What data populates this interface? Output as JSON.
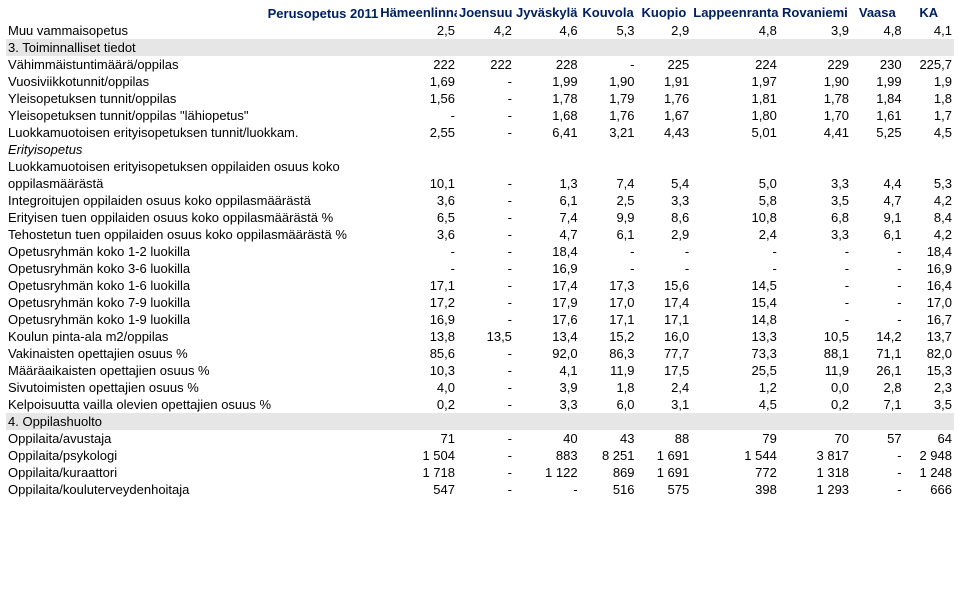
{
  "title": "Perusopetus 2011",
  "title_fontsize": 13,
  "title_fontweight": "bold",
  "title_color": "#002060",
  "header_color": "#002060",
  "header_fontweight": "bold",
  "header_fontsize": 13,
  "body_fontsize": 13,
  "body_color": "#000000",
  "section_bg": "#e6e6e6",
  "columns": [
    "Hämeenlinna",
    "Joensuu",
    "Jyväskylä",
    "Kouvola",
    "Kuopio",
    "Lappeenranta",
    "Rovaniemi",
    "Vaasa",
    "KA"
  ],
  "rows": [
    {
      "type": "data",
      "label": "Muu vammaisopetus",
      "values": [
        "2,5",
        "4,2",
        "4,6",
        "5,3",
        "2,9",
        "4,8",
        "3,9",
        "4,8",
        "4,1"
      ]
    },
    {
      "type": "section",
      "label": "3. Toiminnalliset tiedot"
    },
    {
      "type": "data",
      "label": "Vähimmäistuntimäärä/oppilas",
      "values": [
        "222",
        "222",
        "228",
        "-",
        "225",
        "224",
        "229",
        "230",
        "225,7"
      ]
    },
    {
      "type": "data",
      "label": "Vuosiviikkotunnit/oppilas",
      "values": [
        "1,69",
        "-",
        "1,99",
        "1,90",
        "1,91",
        "1,97",
        "1,90",
        "1,99",
        "1,9"
      ]
    },
    {
      "type": "data",
      "label": "Yleisopetuksen tunnit/oppilas",
      "values": [
        "1,56",
        "-",
        "1,78",
        "1,79",
        "1,76",
        "1,81",
        "1,78",
        "1,84",
        "1,8"
      ]
    },
    {
      "type": "data",
      "label": "Yleisopetuksen tunnit/oppilas \"lähiopetus\"",
      "values": [
        "-",
        "-",
        "1,68",
        "1,76",
        "1,67",
        "1,80",
        "1,70",
        "1,61",
        "1,7"
      ]
    },
    {
      "type": "data",
      "label": "Luokkamuotoisen erityisopetuksen tunnit/luokkam.",
      "values": [
        "2,55",
        "-",
        "6,41",
        "3,21",
        "4,43",
        "5,01",
        "4,41",
        "5,25",
        "4,5"
      ]
    },
    {
      "type": "italic",
      "label": "Erityisopetus"
    },
    {
      "type": "data",
      "label": "Luokkamuotoisen erityisopetuksen oppilaiden osuus koko",
      "values": [
        "",
        "",
        "",
        "",
        "",
        "",
        "",
        "",
        ""
      ]
    },
    {
      "type": "data",
      "label": "oppilasmäärästä",
      "values": [
        "10,1",
        "-",
        "1,3",
        "7,4",
        "5,4",
        "5,0",
        "3,3",
        "4,4",
        "5,3"
      ]
    },
    {
      "type": "data",
      "label": "Integroitujen oppilaiden osuus koko oppilasmäärästä",
      "values": [
        "3,6",
        "-",
        "6,1",
        "2,5",
        "3,3",
        "5,8",
        "3,5",
        "4,7",
        "4,2"
      ]
    },
    {
      "type": "data",
      "label": "Erityisen tuen oppilaiden osuus koko oppilasmäärästä %",
      "values": [
        "6,5",
        "-",
        "7,4",
        "9,9",
        "8,6",
        "10,8",
        "6,8",
        "9,1",
        "8,4"
      ]
    },
    {
      "type": "data",
      "label": "Tehostetun tuen oppilaiden osuus koko oppilasmäärästä %",
      "values": [
        "3,6",
        "-",
        "4,7",
        "6,1",
        "2,9",
        "2,4",
        "3,3",
        "6,1",
        "4,2"
      ]
    },
    {
      "type": "data",
      "label": "Opetusryhmän koko 1-2 luokilla",
      "values": [
        "-",
        "-",
        "18,4",
        "-",
        "-",
        "-",
        "-",
        "-",
        "18,4"
      ]
    },
    {
      "type": "data",
      "label": "Opetusryhmän koko 3-6 luokilla",
      "values": [
        "-",
        "-",
        "16,9",
        "-",
        "-",
        "-",
        "-",
        "-",
        "16,9"
      ]
    },
    {
      "type": "data",
      "label": "Opetusryhmän koko 1-6 luokilla",
      "values": [
        "17,1",
        "-",
        "17,4",
        "17,3",
        "15,6",
        "14,5",
        "-",
        "-",
        "16,4"
      ]
    },
    {
      "type": "data",
      "label": "Opetusryhmän koko 7-9 luokilla",
      "values": [
        "17,2",
        "-",
        "17,9",
        "17,0",
        "17,4",
        "15,4",
        "-",
        "-",
        "17,0"
      ]
    },
    {
      "type": "data",
      "label": "Opetusryhmän koko 1-9 luokilla",
      "values": [
        "16,9",
        "-",
        "17,6",
        "17,1",
        "17,1",
        "14,8",
        "-",
        "-",
        "16,7"
      ]
    },
    {
      "type": "data",
      "label": "Koulun pinta-ala m2/oppilas",
      "values": [
        "13,8",
        "13,5",
        "13,4",
        "15,2",
        "16,0",
        "13,3",
        "10,5",
        "14,2",
        "13,7"
      ]
    },
    {
      "type": "data",
      "label": "Vakinaisten opettajien osuus %",
      "values": [
        "85,6",
        "-",
        "92,0",
        "86,3",
        "77,7",
        "73,3",
        "88,1",
        "71,1",
        "82,0"
      ]
    },
    {
      "type": "data",
      "label": "Määräaikaisten opettajien osuus %",
      "values": [
        "10,3",
        "-",
        "4,1",
        "11,9",
        "17,5",
        "25,5",
        "11,9",
        "26,1",
        "15,3"
      ]
    },
    {
      "type": "data",
      "label": "Sivutoimisten opettajien osuus %",
      "values": [
        "4,0",
        "-",
        "3,9",
        "1,8",
        "2,4",
        "1,2",
        "0,0",
        "2,8",
        "2,3"
      ]
    },
    {
      "type": "data",
      "label": "Kelpoisuutta vailla olevien opettajien osuus %",
      "values": [
        "0,2",
        "-",
        "3,3",
        "6,0",
        "3,1",
        "4,5",
        "0,2",
        "7,1",
        "3,5"
      ]
    },
    {
      "type": "section",
      "label": "4. Oppilashuolto"
    },
    {
      "type": "data",
      "label": "Oppilaita/avustaja",
      "values": [
        "71",
        "-",
        "40",
        "43",
        "88",
        "79",
        "70",
        "57",
        "64"
      ]
    },
    {
      "type": "data",
      "label": "Oppilaita/psykologi",
      "values": [
        "1 504",
        "-",
        "883",
        "8 251",
        "1 691",
        "1 544",
        "3 817",
        "-",
        "2 948"
      ]
    },
    {
      "type": "data",
      "label": "Oppilaita/kuraattori",
      "values": [
        "1 718",
        "-",
        "1 122",
        "869",
        "1 691",
        "772",
        "1 318",
        "-",
        "1 248"
      ]
    },
    {
      "type": "data",
      "label": "Oppilaita/kouluterveydenhoitaja",
      "values": [
        "547",
        "-",
        "-",
        "516",
        "575",
        "398",
        "1 293",
        "-",
        "666"
      ]
    }
  ]
}
